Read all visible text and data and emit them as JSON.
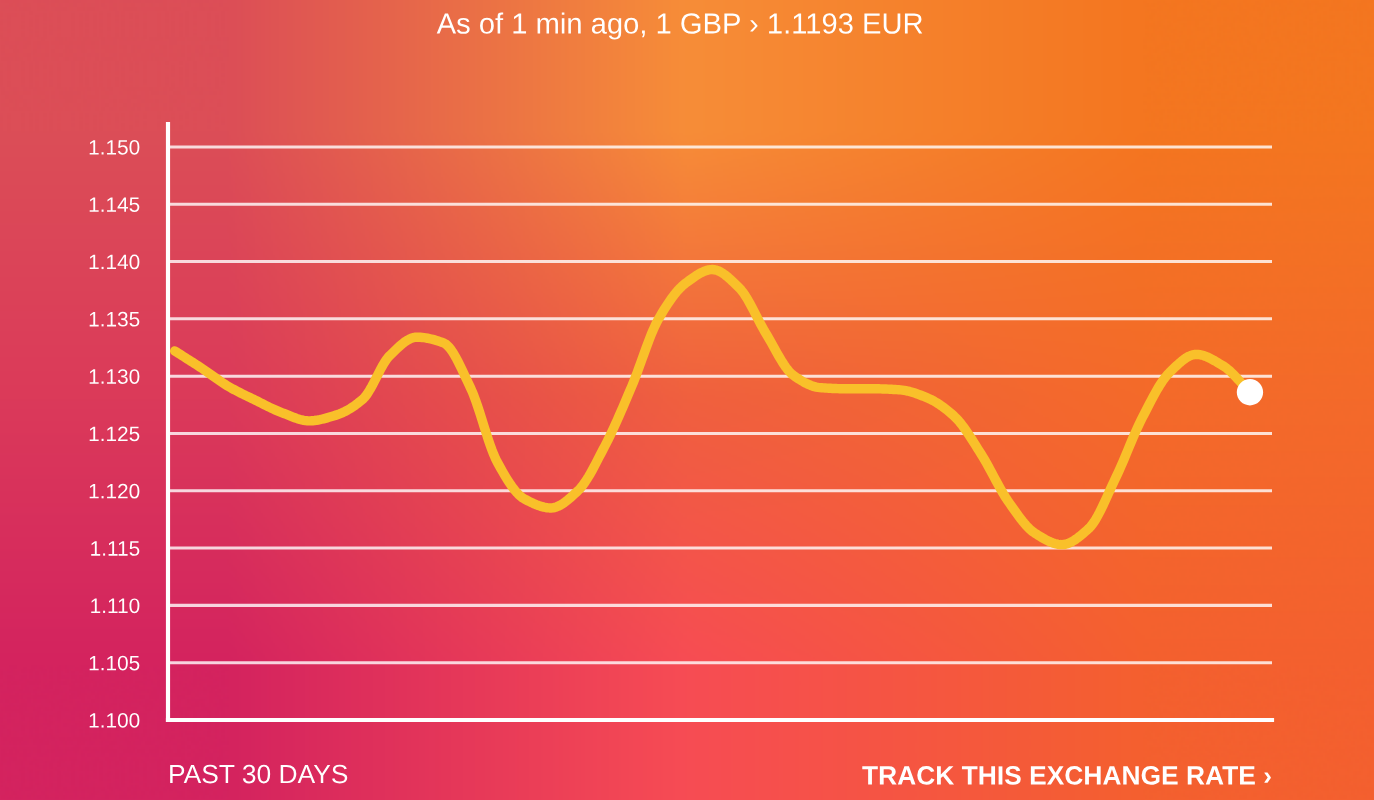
{
  "chart_data": {
    "type": "line",
    "title": "As of 1 min ago, 1 GBP › 1.1193 EUR",
    "xlabel": "PAST 30 DAYS",
    "annotations": [
      "TRACK THIS EXCHANGE RATE ›"
    ],
    "categories": [
      null,
      null,
      null,
      null,
      null,
      null,
      null,
      null,
      null,
      null,
      null,
      null,
      null,
      null,
      null,
      null,
      null,
      null,
      null,
      null,
      null,
      null,
      null,
      null,
      null,
      null,
      null,
      null,
      null,
      null,
      null,
      null,
      null,
      null,
      null,
      null,
      null,
      null,
      null,
      null,
      null
    ],
    "series": [
      {
        "color": "#f9c02a",
        "line_style": "solid",
        "marker": "none",
        "values": [
          1.1322,
          1.1307,
          1.1291,
          1.1279,
          1.1268,
          1.1261,
          1.1266,
          1.128,
          1.1318,
          1.1334,
          1.1329,
          1.129,
          1.1225,
          1.1193,
          1.1185,
          1.12,
          1.1239,
          1.1291,
          1.135,
          1.1381,
          1.1393,
          1.1377,
          1.1337,
          1.1301,
          1.129,
          1.1289,
          1.1289,
          1.1288,
          1.1281,
          1.1265,
          1.1232,
          1.1191,
          1.1163,
          1.1153,
          1.1167,
          1.1211,
          1.1264,
          1.1303,
          1.1319,
          1.1309,
          1.1286
        ]
      },
      {
        "type": "scatter",
        "color": "#ffffff",
        "marker": "circle",
        "values": [
          null,
          null,
          null,
          null,
          null,
          null,
          null,
          null,
          null,
          null,
          null,
          null,
          null,
          null,
          null,
          null,
          null,
          null,
          null,
          null,
          null,
          null,
          null,
          null,
          null,
          null,
          null,
          null,
          null,
          null,
          null,
          null,
          null,
          null,
          null,
          null,
          null,
          null,
          null,
          null,
          1.1286
        ]
      }
    ],
    "ylim": [
      1.1,
      1.152
    ],
    "yticks": [
      {
        "value": 1.1,
        "label": "1.100"
      },
      1.105,
      {
        "value": 1.11,
        "label": "1.110"
      },
      1.115,
      {
        "value": 1.12,
        "label": "1.120"
      },
      1.125,
      {
        "value": 1.13,
        "label": "1.130"
      },
      1.135,
      {
        "value": 1.14,
        "label": "1.140"
      },
      1.145,
      {
        "value": 1.15,
        "label": "1.150"
      }
    ],
    "grid": "y"
  }
}
